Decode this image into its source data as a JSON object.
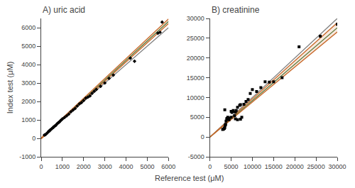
{
  "chart_data": [
    {
      "type": "scatter",
      "title": "A) uric acid",
      "xlabel": "Reference test (μM)",
      "ylabel": "Index test (μM)",
      "xlim": [
        0,
        6000
      ],
      "ylim": [
        -1000,
        6500
      ],
      "xticks": [
        0,
        1000,
        2000,
        3000,
        4000,
        5000,
        6000
      ],
      "yticks": [
        -1000,
        0,
        1000,
        2000,
        3000,
        4000,
        5000,
        6000
      ],
      "grid": false,
      "series": [
        {
          "type": "line",
          "color": "#808080",
          "x": [
            0,
            6000
          ],
          "values": [
            0,
            6000
          ]
        },
        {
          "type": "line",
          "color": "#4a7c3f",
          "x": [
            0,
            6000
          ],
          "values": [
            -3.539,
            6338.461
          ]
        },
        {
          "type": "line",
          "color": "#c8692a",
          "x": [
            0,
            6000
          ],
          "values": [
            -28.56,
            6217.44
          ]
        },
        {
          "type": "line",
          "color": "#c8692a",
          "x": [
            0,
            6000
          ],
          "values": [
            24.247,
            6468.247
          ]
        },
        {
          "type": "scatter",
          "color": "#000000",
          "marker": "diamond",
          "x": [
            150,
            200,
            250,
            300,
            350,
            380,
            400,
            420,
            450,
            500,
            550,
            580,
            620,
            680,
            700,
            750,
            800,
            850,
            900,
            950,
            1000,
            1100,
            1200,
            1300,
            1400,
            1500,
            1600,
            1700,
            1800,
            1900,
            2000,
            2100,
            2200,
            2300,
            2400,
            2500,
            2600,
            2800,
            3000,
            3200,
            3400,
            4200,
            4400,
            5500,
            5600,
            5700
          ],
          "values": [
            180,
            200,
            250,
            310,
            370,
            400,
            420,
            440,
            480,
            520,
            580,
            600,
            650,
            700,
            720,
            790,
            840,
            880,
            940,
            1000,
            1050,
            1130,
            1220,
            1310,
            1440,
            1530,
            1620,
            1750,
            1870,
            1940,
            2050,
            2180,
            2230,
            2300,
            2440,
            2550,
            2650,
            2820,
            3000,
            3250,
            3430,
            4350,
            4180,
            5700,
            5750,
            6300
          ]
        }
      ]
    },
    {
      "type": "scatter",
      "title": "B) creatinine",
      "xlim": [
        0,
        30000
      ],
      "ylim": [
        -5000,
        30000
      ],
      "xticks": [
        0,
        5000,
        10000,
        15000,
        20000,
        25000,
        30000
      ],
      "yticks": [
        -5000,
        0,
        5000,
        10000,
        15000,
        20000,
        25000,
        30000
      ],
      "grid": false,
      "series": [
        {
          "type": "line",
          "color": "#808080",
          "x": [
            0,
            30000
          ],
          "values": [
            0,
            30000
          ]
        },
        {
          "type": "line",
          "color": "#4a7c3f",
          "x": [
            0,
            30000
          ],
          "values": [
            -0.62,
            27629.38
          ]
        },
        {
          "type": "line",
          "color": "#c8692a",
          "x": [
            0,
            30000
          ],
          "values": [
            -0.979,
            26579.021
          ]
        },
        {
          "type": "line",
          "color": "#c8692a",
          "x": [
            0,
            30000
          ],
          "values": [
            -0.161,
            28919.839
          ]
        },
        {
          "type": "scatter",
          "color": "#000000",
          "marker": "square",
          "x": [
            3000,
            3200,
            3400,
            3500,
            3600,
            3700,
            3800,
            4000,
            4200,
            4500,
            5000,
            5200,
            5400,
            5500,
            5800,
            6000,
            6200,
            6500,
            7000,
            7200,
            7500,
            8000,
            8500,
            9000,
            9500,
            10000,
            11000,
            12000,
            13000,
            14000,
            15000,
            17000,
            21000,
            26000,
            30000,
            3500,
            4000,
            7200,
            4500,
            6500,
            5000,
            6000
          ],
          "values": [
            1900,
            2000,
            2200,
            2400,
            3000,
            3200,
            4000,
            4700,
            5000,
            4800,
            5000,
            6200,
            6500,
            6700,
            5400,
            4600,
            6700,
            7500,
            8000,
            8200,
            5000,
            8300,
            9000,
            9500,
            11000,
            12000,
            11500,
            12500,
            14000,
            13900,
            14000,
            15000,
            22800,
            25500,
            28500,
            6900,
            4500,
            4500,
            4400,
            4400,
            6500,
            6300
          ]
        }
      ]
    }
  ]
}
